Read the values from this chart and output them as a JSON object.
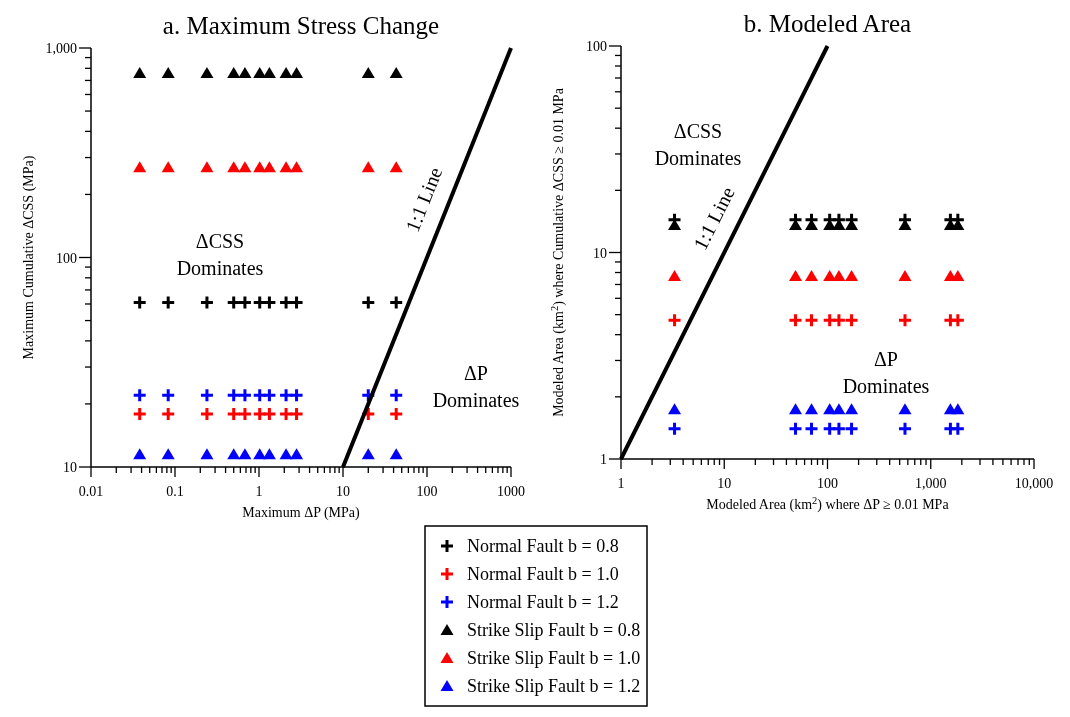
{
  "chart_data": [
    {
      "type": "scatter",
      "title": "a. Maximum Stress Change",
      "xlabel": "Maximum ΔP (MPa)",
      "ylabel": "Maximum Cumulative ΔCSS (MPa)",
      "log": "xy",
      "grid": false,
      "legend": "bottom",
      "xlim": [
        0.01,
        1000
      ],
      "ylim": [
        10,
        1000
      ],
      "xticks": [
        0.01,
        {
          "value": 0.02,
          "label": null
        },
        {
          "value": 0.03,
          "label": null
        },
        {
          "value": 0.04,
          "label": null
        },
        {
          "value": 0.05,
          "label": null
        },
        {
          "value": 0.06,
          "label": null
        },
        {
          "value": 0.07,
          "label": null
        },
        {
          "value": 0.08,
          "label": null
        },
        {
          "value": 0.09,
          "label": null
        },
        0.1,
        {
          "value": 0.2,
          "label": null
        },
        {
          "value": 0.3,
          "label": null
        },
        {
          "value": 0.4,
          "label": null
        },
        {
          "value": 0.5,
          "label": null
        },
        {
          "value": 0.6,
          "label": null
        },
        {
          "value": 0.7,
          "label": null
        },
        {
          "value": 0.8,
          "label": null
        },
        {
          "value": 0.9,
          "label": null
        },
        1,
        {
          "value": 2,
          "label": null
        },
        {
          "value": 3,
          "label": null
        },
        {
          "value": 4,
          "label": null
        },
        {
          "value": 5,
          "label": null
        },
        {
          "value": 6,
          "label": null
        },
        {
          "value": 7,
          "label": null
        },
        {
          "value": 8,
          "label": null
        },
        {
          "value": 9,
          "label": null
        },
        10,
        {
          "value": 20,
          "label": null
        },
        {
          "value": 30,
          "label": null
        },
        {
          "value": 40,
          "label": null
        },
        {
          "value": 50,
          "label": null
        },
        {
          "value": 60,
          "label": null
        },
        {
          "value": 70,
          "label": null
        },
        {
          "value": 80,
          "label": null
        },
        {
          "value": 90,
          "label": null
        },
        100,
        {
          "value": 200,
          "label": null
        },
        {
          "value": 300,
          "label": null
        },
        {
          "value": 400,
          "label": null
        },
        {
          "value": 500,
          "label": null
        },
        {
          "value": 600,
          "label": null
        },
        {
          "value": 700,
          "label": null
        },
        {
          "value": 800,
          "label": null
        },
        {
          "value": 900,
          "label": null
        },
        1000
      ],
      "yticks": [
        10,
        {
          "value": 20,
          "label": null
        },
        {
          "value": 30,
          "label": null
        },
        {
          "value": 40,
          "label": null
        },
        {
          "value": 50,
          "label": null
        },
        {
          "value": 60,
          "label": null
        },
        {
          "value": 70,
          "label": null
        },
        {
          "value": 80,
          "label": null
        },
        {
          "value": 90,
          "label": null
        },
        100,
        {
          "value": 200,
          "label": null
        },
        {
          "value": 300,
          "label": null
        },
        {
          "value": 400,
          "label": null
        },
        {
          "value": 500,
          "label": null
        },
        {
          "value": 600,
          "label": null
        },
        {
          "value": 700,
          "label": null
        },
        {
          "value": 800,
          "label": null
        },
        {
          "value": 900,
          "label": null
        },
        {
          "value": 1000,
          "label": "1,000"
        }
      ],
      "annotations": [
        "ΔCSS\nDominates",
        "ΔP\nDominates"
      ],
      "series": [
        {
          "name": "Normal Fault b = 0.8",
          "color": "#000000",
          "marker": "cross",
          "x": [
            0.038,
            0.083,
            0.24,
            0.5,
            0.68,
            1.02,
            1.33,
            2.1,
            2.8,
            20,
            43
          ],
          "values": [
            61,
            61,
            61,
            61,
            61,
            61,
            61,
            61,
            61,
            61,
            61
          ]
        },
        {
          "name": "Normal Fault b = 1.0",
          "color": "#ff0000",
          "marker": "cross",
          "x": [
            0.038,
            0.083,
            0.24,
            0.5,
            0.68,
            1.02,
            1.33,
            2.1,
            2.8,
            20,
            43
          ],
          "values": [
            17.9,
            17.9,
            17.9,
            17.9,
            17.9,
            17.9,
            17.9,
            17.9,
            17.9,
            17.9,
            17.9
          ]
        },
        {
          "name": "Normal Fault b = 1.2",
          "color": "#0000ff",
          "marker": "cross",
          "x": [
            0.038,
            0.083,
            0.24,
            0.5,
            0.68,
            1.02,
            1.33,
            2.1,
            2.8,
            20,
            43
          ],
          "values": [
            22,
            22,
            22,
            22,
            22,
            22,
            22,
            22,
            22,
            22,
            22
          ]
        },
        {
          "name": "Strike Slip Fault b = 0.8",
          "color": "#000000",
          "marker": "triangle",
          "x": [
            0.038,
            0.083,
            0.24,
            0.5,
            0.68,
            1.02,
            1.33,
            2.1,
            2.8,
            20,
            43
          ],
          "values": [
            760,
            760,
            760,
            760,
            760,
            760,
            760,
            760,
            760,
            760,
            760
          ]
        },
        {
          "name": "Strike Slip Fault b = 1.0",
          "color": "#ff0000",
          "marker": "triangle",
          "x": [
            0.038,
            0.083,
            0.24,
            0.5,
            0.68,
            1.02,
            1.33,
            2.1,
            2.8,
            20,
            43
          ],
          "values": [
            270,
            270,
            270,
            270,
            270,
            270,
            270,
            270,
            270,
            270,
            270
          ]
        },
        {
          "name": "Strike Slip Fault b = 1.2",
          "color": "#0000ff",
          "marker": "triangle",
          "x": [
            0.038,
            0.083,
            0.24,
            0.5,
            0.68,
            1.02,
            1.33,
            2.1,
            2.8,
            20,
            43
          ],
          "values": [
            11.5,
            11.5,
            11.5,
            11.5,
            11.5,
            11.5,
            11.5,
            11.5,
            11.5,
            11.5,
            11.5
          ]
        },
        {
          "name": "1:1 Line",
          "type": "line",
          "line_style": "solid",
          "color": "#000000",
          "x": [
            10,
            1000
          ],
          "values": [
            10,
            1000
          ]
        }
      ]
    },
    {
      "type": "scatter",
      "title": "b. Modeled Area",
      "xlabel": "Modeled Area (km$^{2}$) where ΔP ≥ 0.01 MPa",
      "ylabel": "Modeled Area (km$^{2}$) where Cumulative ΔCSS ≥ 0.01 MPa",
      "log": "xy",
      "grid": false,
      "xlim": [
        1,
        10000
      ],
      "ylim": [
        1,
        100
      ],
      "xticks": [
        1,
        {
          "value": 2,
          "label": null
        },
        {
          "value": 3,
          "label": null
        },
        {
          "value": 4,
          "label": null
        },
        {
          "value": 5,
          "label": null
        },
        {
          "value": 6,
          "label": null
        },
        {
          "value": 7,
          "label": null
        },
        {
          "value": 8,
          "label": null
        },
        {
          "value": 9,
          "label": null
        },
        10,
        {
          "value": 20,
          "label": null
        },
        {
          "value": 30,
          "label": null
        },
        {
          "value": 40,
          "label": null
        },
        {
          "value": 50,
          "label": null
        },
        {
          "value": 60,
          "label": null
        },
        {
          "value": 70,
          "label": null
        },
        {
          "value": 80,
          "label": null
        },
        {
          "value": 90,
          "label": null
        },
        100,
        {
          "value": 200,
          "label": null
        },
        {
          "value": 300,
          "label": null
        },
        {
          "value": 400,
          "label": null
        },
        {
          "value": 500,
          "label": null
        },
        {
          "value": 600,
          "label": null
        },
        {
          "value": 700,
          "label": null
        },
        {
          "value": 800,
          "label": null
        },
        {
          "value": 900,
          "label": null
        },
        {
          "value": 1000,
          "label": "1,000"
        },
        {
          "value": 2000,
          "label": null
        },
        {
          "value": 3000,
          "label": null
        },
        {
          "value": 4000,
          "label": null
        },
        {
          "value": 5000,
          "label": null
        },
        {
          "value": 6000,
          "label": null
        },
        {
          "value": 7000,
          "label": null
        },
        {
          "value": 8000,
          "label": null
        },
        {
          "value": 9000,
          "label": null
        },
        {
          "value": 10000,
          "label": "10,000"
        }
      ],
      "yticks": [
        1,
        {
          "value": 2,
          "label": null
        },
        {
          "value": 3,
          "label": null
        },
        {
          "value": 4,
          "label": null
        },
        {
          "value": 5,
          "label": null
        },
        {
          "value": 6,
          "label": null
        },
        {
          "value": 7,
          "label": null
        },
        {
          "value": 8,
          "label": null
        },
        {
          "value": 9,
          "label": null
        },
        10,
        {
          "value": 20,
          "label": null
        },
        {
          "value": 30,
          "label": null
        },
        {
          "value": 40,
          "label": null
        },
        {
          "value": 50,
          "label": null
        },
        {
          "value": 60,
          "label": null
        },
        {
          "value": 70,
          "label": null
        },
        {
          "value": 80,
          "label": null
        },
        {
          "value": 90,
          "label": null
        },
        100
      ],
      "annotations": [
        "ΔCSS\nDominates",
        "ΔP\nDominates"
      ],
      "series": [
        {
          "color": "#000000",
          "marker": "cross",
          "x": [
            3.3,
            49,
            70,
            105,
            129,
            171,
            563,
            1550,
            1830
          ],
          "values": [
            14.4,
            14.4,
            14.4,
            14.4,
            14.4,
            14.4,
            14.4,
            14.4,
            14.4
          ]
        },
        {
          "color": "#ff0000",
          "marker": "cross",
          "x": [
            3.3,
            49,
            70,
            105,
            129,
            171,
            563,
            1550,
            1830
          ],
          "values": [
            4.7,
            4.7,
            4.7,
            4.7,
            4.7,
            4.7,
            4.7,
            4.7,
            4.7
          ]
        },
        {
          "color": "#0000ff",
          "marker": "cross",
          "x": [
            3.3,
            49,
            70,
            105,
            129,
            171,
            563,
            1550,
            1830
          ],
          "values": [
            1.4,
            1.4,
            1.4,
            1.4,
            1.4,
            1.4,
            1.4,
            1.4,
            1.4
          ]
        },
        {
          "color": "#000000",
          "marker": "triangle",
          "x": [
            3.3,
            49,
            70,
            105,
            129,
            171,
            563,
            1550,
            1830
          ],
          "values": [
            13.6,
            13.6,
            13.6,
            13.6,
            13.6,
            13.6,
            13.6,
            13.6,
            13.6
          ]
        },
        {
          "color": "#ff0000",
          "marker": "triangle",
          "x": [
            3.3,
            49,
            70,
            105,
            129,
            171,
            563,
            1550,
            1830
          ],
          "values": [
            7.7,
            7.7,
            7.7,
            7.7,
            7.7,
            7.7,
            7.7,
            7.7,
            7.7
          ]
        },
        {
          "color": "#0000ff",
          "marker": "triangle",
          "x": [
            3.3,
            49,
            70,
            105,
            129,
            171,
            563,
            1550,
            1830
          ],
          "values": [
            1.74,
            1.74,
            1.74,
            1.74,
            1.74,
            1.74,
            1.74,
            1.74,
            1.74
          ]
        },
        {
          "name": "1:1 Line",
          "type": "line",
          "line_style": "solid",
          "color": "#000000",
          "x": [
            1,
            100
          ],
          "values": [
            1,
            100
          ]
        }
      ]
    }
  ]
}
